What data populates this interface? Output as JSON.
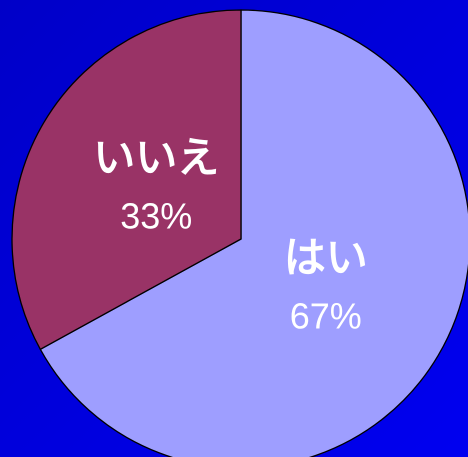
{
  "chart_data": {
    "type": "pie",
    "categories": [
      "はい",
      "いいえ"
    ],
    "values": [
      67,
      33
    ],
    "value_labels": [
      "67%",
      "33%"
    ],
    "colors": [
      "#9e9eff",
      "#993366"
    ]
  }
}
